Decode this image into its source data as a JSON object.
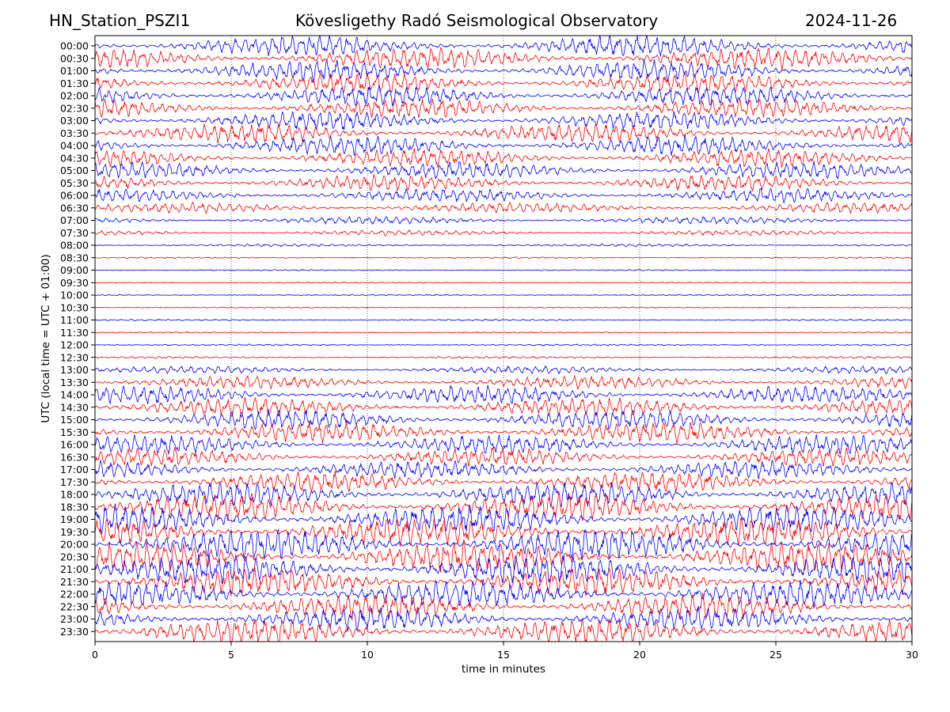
{
  "header": {
    "station": "HN_Station_PSZI1",
    "observatory": "Kövesligethy Radó Seismological Observatory",
    "date": "2024-11-26"
  },
  "chart_data": {
    "type": "line",
    "title": "Kövesligethy Radó Seismological Observatory",
    "subtitle_left": "HN_Station_PSZI1",
    "subtitle_right": "2024-11-26",
    "xlabel": "time in minutes",
    "ylabel": "UTC (local time = UTC + 01:00)",
    "xlim": [
      0,
      30
    ],
    "x_ticks": [
      "0",
      "5",
      "10",
      "15",
      "20",
      "25",
      "30"
    ],
    "x_tick_values": [
      0,
      5,
      10,
      15,
      20,
      25,
      30
    ],
    "grid": "vertical dotted at x ticks",
    "trace_colors": [
      "#0000ff",
      "#ff0000"
    ],
    "rows": [
      {
        "label": "00:00",
        "activity": 1.0
      },
      {
        "label": "00:30",
        "activity": 1.0
      },
      {
        "label": "01:00",
        "activity": 1.0
      },
      {
        "label": "01:30",
        "activity": 0.95
      },
      {
        "label": "02:00",
        "activity": 0.95
      },
      {
        "label": "02:30",
        "activity": 0.9
      },
      {
        "label": "03:00",
        "activity": 0.9
      },
      {
        "label": "03:30",
        "activity": 0.9
      },
      {
        "label": "04:00",
        "activity": 0.9
      },
      {
        "label": "04:30",
        "activity": 0.85
      },
      {
        "label": "05:00",
        "activity": 0.8
      },
      {
        "label": "05:30",
        "activity": 0.75
      },
      {
        "label": "06:00",
        "activity": 0.65
      },
      {
        "label": "06:30",
        "activity": 0.5
      },
      {
        "label": "07:00",
        "activity": 0.35
      },
      {
        "label": "07:30",
        "activity": 0.25
      },
      {
        "label": "08:00",
        "activity": 0.12
      },
      {
        "label": "08:30",
        "activity": 0.06
      },
      {
        "label": "09:00",
        "activity": 0.05
      },
      {
        "label": "09:30",
        "activity": 0.05
      },
      {
        "label": "10:00",
        "activity": 0.05
      },
      {
        "label": "10:30",
        "activity": 0.05
      },
      {
        "label": "11:00",
        "activity": 0.07
      },
      {
        "label": "11:30",
        "activity": 0.05
      },
      {
        "label": "12:00",
        "activity": 0.07
      },
      {
        "label": "12:30",
        "activity": 0.1
      },
      {
        "label": "13:00",
        "activity": 0.35
      },
      {
        "label": "13:30",
        "activity": 0.6
      },
      {
        "label": "14:00",
        "activity": 0.85
      },
      {
        "label": "14:30",
        "activity": 0.9
      },
      {
        "label": "15:00",
        "activity": 0.95
      },
      {
        "label": "15:30",
        "activity": 0.95
      },
      {
        "label": "16:00",
        "activity": 0.9
      },
      {
        "label": "16:30",
        "activity": 0.85
      },
      {
        "label": "17:00",
        "activity": 0.85
      },
      {
        "label": "17:30",
        "activity": 0.95
      },
      {
        "label": "18:00",
        "activity": 1.15
      },
      {
        "label": "18:30",
        "activity": 1.25
      },
      {
        "label": "19:00",
        "activity": 1.35
      },
      {
        "label": "19:30",
        "activity": 1.4
      },
      {
        "label": "20:00",
        "activity": 1.45
      },
      {
        "label": "20:30",
        "activity": 1.45
      },
      {
        "label": "21:00",
        "activity": 1.4
      },
      {
        "label": "21:30",
        "activity": 1.35
      },
      {
        "label": "22:00",
        "activity": 1.3
      },
      {
        "label": "22:30",
        "activity": 1.2
      },
      {
        "label": "23:00",
        "activity": 1.1
      },
      {
        "label": "23:30",
        "activity": 1.2
      }
    ]
  }
}
